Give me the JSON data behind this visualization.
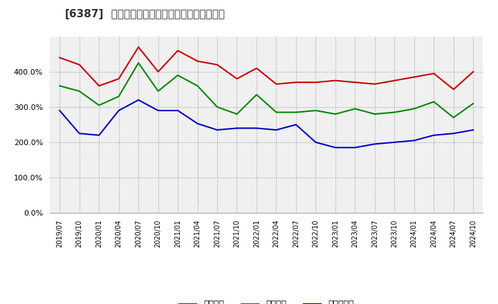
{
  "title": "[6387]  流動比率、当座比率、現預金比率の推移",
  "x_labels": [
    "2019/07",
    "2019/10",
    "2020/01",
    "2020/04",
    "2020/07",
    "2020/10",
    "2021/01",
    "2021/04",
    "2021/07",
    "2021/10",
    "2022/01",
    "2022/04",
    "2022/07",
    "2022/10",
    "2023/01",
    "2023/04",
    "2023/07",
    "2023/10",
    "2024/01",
    "2024/04",
    "2024/07",
    "2024/10"
  ],
  "ryudo": [
    440,
    420,
    360,
    380,
    470,
    400,
    460,
    430,
    420,
    380,
    410,
    365,
    370,
    370,
    375,
    370,
    365,
    375,
    385,
    395,
    350,
    400
  ],
  "toza": [
    360,
    345,
    305,
    330,
    425,
    345,
    390,
    360,
    300,
    280,
    335,
    285,
    285,
    290,
    280,
    295,
    280,
    285,
    295,
    315,
    270,
    310
  ],
  "genyo": [
    290,
    225,
    220,
    290,
    320,
    290,
    290,
    253,
    235,
    240,
    240,
    235,
    250,
    200,
    185,
    185,
    195,
    200,
    205,
    220,
    225,
    235
  ],
  "ryudo_color": "#cc0000",
  "toza_color": "#008800",
  "genyo_color": "#0000cc",
  "legend_labels": [
    "流動比率",
    "当座比率",
    "現預金比率"
  ],
  "ylim": [
    0,
    500
  ],
  "yticks": [
    0,
    100,
    200,
    300,
    400
  ],
  "background_color": "#ffffff",
  "plot_bg_color": "#f0f0f0",
  "grid_color": "#aaaaaa",
  "title_prefix": "[6387]",
  "title_suffix": "流動比率、当座比率、現預金比率の推移"
}
